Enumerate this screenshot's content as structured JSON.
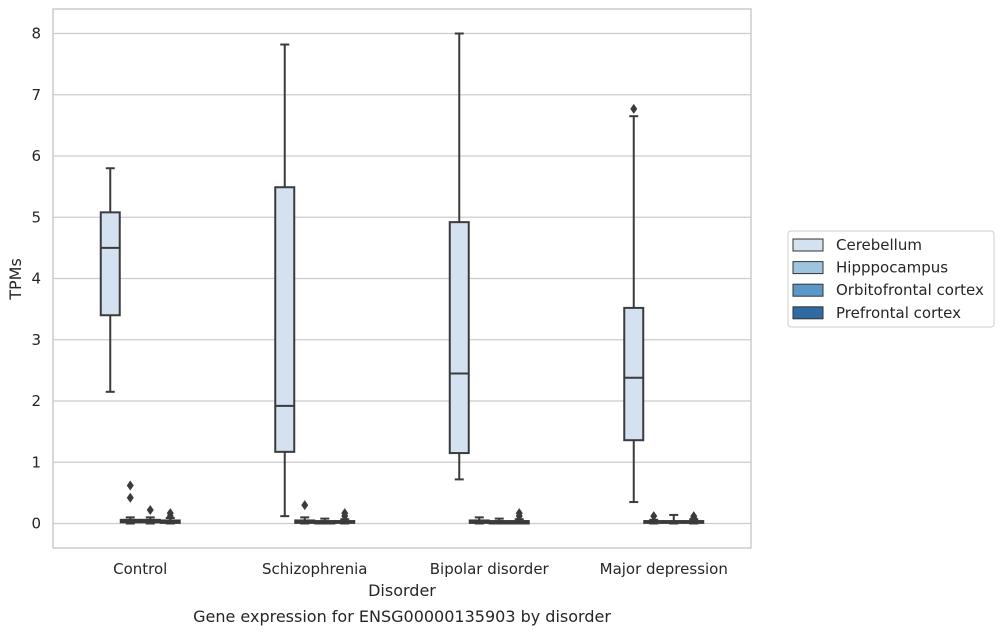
{
  "chart_data": {
    "type": "box",
    "title": "Gene expression for ENSG00000135903 by disorder",
    "xlabel": "Disorder",
    "ylabel": "TPMs",
    "ylim": [
      -0.4,
      8.4
    ],
    "yticks": [
      0,
      1,
      2,
      3,
      4,
      5,
      6,
      7,
      8
    ],
    "grid": true,
    "legend_position": "right",
    "categories": [
      "Control",
      "Schizophrenia",
      "Bipolar disorder",
      "Major depression"
    ],
    "series": [
      {
        "name": "Cerebellum",
        "color": "#d3e1f0",
        "boxes": [
          {
            "whislo": 2.15,
            "q1": 3.4,
            "median": 4.5,
            "q3": 5.08,
            "whishi": 5.8,
            "fliers": []
          },
          {
            "whislo": 0.12,
            "q1": 1.17,
            "median": 1.92,
            "q3": 5.49,
            "whishi": 7.82,
            "fliers": []
          },
          {
            "whislo": 0.72,
            "q1": 1.15,
            "median": 2.45,
            "q3": 4.92,
            "whishi": 8.0,
            "fliers": []
          },
          {
            "whislo": 0.35,
            "q1": 1.36,
            "median": 2.38,
            "q3": 3.52,
            "whishi": 6.65,
            "fliers": [
              6.77
            ]
          }
        ]
      },
      {
        "name": "Hipppocampus",
        "color": "#9fc4e0",
        "boxes": [
          {
            "whislo": 0.0,
            "q1": 0.02,
            "median": 0.04,
            "q3": 0.06,
            "whishi": 0.1,
            "fliers": [
              0.42,
              0.62
            ]
          },
          {
            "whislo": 0.0,
            "q1": 0.01,
            "median": 0.03,
            "q3": 0.05,
            "whishi": 0.1,
            "fliers": [
              0.3
            ]
          },
          {
            "whislo": 0.0,
            "q1": 0.01,
            "median": 0.03,
            "q3": 0.05,
            "whishi": 0.1,
            "fliers": []
          },
          {
            "whislo": 0.0,
            "q1": 0.01,
            "median": 0.02,
            "q3": 0.04,
            "whishi": 0.06,
            "fliers": [
              0.12
            ]
          }
        ]
      },
      {
        "name": "Orbitofrontal cortex",
        "color": "#5a98c8",
        "boxes": [
          {
            "whislo": 0.0,
            "q1": 0.02,
            "median": 0.04,
            "q3": 0.06,
            "whishi": 0.1,
            "fliers": [
              0.22
            ]
          },
          {
            "whislo": 0.0,
            "q1": 0.0,
            "median": 0.02,
            "q3": 0.04,
            "whishi": 0.08,
            "fliers": []
          },
          {
            "whislo": 0.0,
            "q1": 0.0,
            "median": 0.02,
            "q3": 0.04,
            "whishi": 0.08,
            "fliers": []
          },
          {
            "whislo": 0.0,
            "q1": 0.01,
            "median": 0.02,
            "q3": 0.04,
            "whishi": 0.14,
            "fliers": []
          }
        ]
      },
      {
        "name": "Prefrontal cortex",
        "color": "#2f6aa3",
        "boxes": [
          {
            "whislo": 0.0,
            "q1": 0.01,
            "median": 0.03,
            "q3": 0.05,
            "whishi": 0.09,
            "fliers": [
              0.12,
              0.17
            ]
          },
          {
            "whislo": 0.0,
            "q1": 0.01,
            "median": 0.02,
            "q3": 0.04,
            "whishi": 0.07,
            "fliers": [
              0.12,
              0.17
            ]
          },
          {
            "whislo": 0.0,
            "q1": 0.0,
            "median": 0.02,
            "q3": 0.04,
            "whishi": 0.07,
            "fliers": [
              0.12,
              0.17
            ]
          },
          {
            "whislo": 0.0,
            "q1": 0.01,
            "median": 0.02,
            "q3": 0.04,
            "whishi": 0.07,
            "fliers": [
              0.09,
              0.12
            ]
          }
        ]
      }
    ]
  }
}
